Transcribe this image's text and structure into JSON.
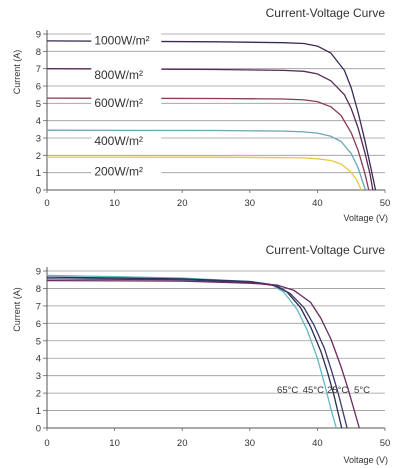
{
  "chart_data": [
    {
      "type": "line",
      "title": "Current-Voltage Curve",
      "xlabel": "Voltage (V)",
      "ylabel": "Current (A)",
      "xlim": [
        0,
        50
      ],
      "ylim": [
        0,
        9
      ],
      "xticks": [
        "0",
        "10",
        "20",
        "30",
        "40",
        "50"
      ],
      "yticks": [
        "0",
        "1",
        "2",
        "3",
        "4",
        "5",
        "6",
        "7",
        "8",
        "9"
      ],
      "grid": "horizontal",
      "series": [
        {
          "name": "1000W/m²",
          "color": "#3a2a55",
          "label_at": [
            7,
            8.4
          ],
          "x": [
            0,
            25,
            35,
            38,
            40,
            42,
            44,
            45,
            46,
            47,
            48,
            48.6
          ],
          "y": [
            8.6,
            8.55,
            8.5,
            8.45,
            8.3,
            7.9,
            6.9,
            5.9,
            4.5,
            2.9,
            1.1,
            0
          ]
        },
        {
          "name": "800W/m²",
          "color": "#5a2a55",
          "label_at": [
            7,
            6.4
          ],
          "x": [
            0,
            25,
            35,
            38,
            40,
            42,
            44,
            45,
            46,
            47,
            47.8,
            48.2
          ],
          "y": [
            7.0,
            6.95,
            6.9,
            6.85,
            6.7,
            6.3,
            5.5,
            4.7,
            3.6,
            2.2,
            0.9,
            0
          ]
        },
        {
          "name": "600W/m²",
          "color": "#8a3a5a",
          "label_at": [
            7,
            4.8
          ],
          "x": [
            0,
            25,
            35,
            38,
            40,
            42,
            43.5,
            45,
            46,
            47,
            47.6
          ],
          "y": [
            5.3,
            5.28,
            5.25,
            5.2,
            5.1,
            4.8,
            4.3,
            3.3,
            2.3,
            1.0,
            0
          ]
        },
        {
          "name": "400W/m²",
          "color": "#6aa6b8",
          "label_at": [
            7,
            2.6
          ],
          "x": [
            0,
            25,
            35,
            38,
            40,
            42,
            43.5,
            45,
            46,
            47.1
          ],
          "y": [
            3.45,
            3.43,
            3.4,
            3.35,
            3.28,
            3.1,
            2.8,
            2.1,
            1.3,
            0
          ]
        },
        {
          "name": "200W/m²",
          "color": "#e8c840",
          "label_at": [
            7,
            0.85
          ],
          "x": [
            0,
            25,
            35,
            38,
            40,
            42,
            43.5,
            44.8,
            45.8,
            46.5
          ],
          "y": [
            1.9,
            1.89,
            1.87,
            1.85,
            1.8,
            1.7,
            1.5,
            1.1,
            0.6,
            0
          ]
        }
      ]
    },
    {
      "type": "line",
      "title": "Current-Voltage Curve",
      "xlabel": "Voltage (V)",
      "ylabel": "Current (A)",
      "xlim": [
        0,
        50
      ],
      "ylim": [
        0,
        9
      ],
      "xticks": [
        "0",
        "10",
        "20",
        "30",
        "40",
        "50"
      ],
      "yticks": [
        "0",
        "1",
        "2",
        "3",
        "4",
        "5",
        "6",
        "7",
        "8",
        "9"
      ],
      "grid": "horizontal",
      "series": [
        {
          "name": "65°C",
          "color": "#5fb8c0",
          "label_at": [
            35.6,
            2.0
          ],
          "x": [
            0,
            20,
            30,
            33,
            35,
            37,
            38.5,
            40,
            41,
            42,
            42.8
          ],
          "y": [
            8.75,
            8.6,
            8.4,
            8.25,
            7.8,
            6.8,
            5.6,
            4.0,
            2.6,
            1.1,
            0
          ]
        },
        {
          "name": "45°C",
          "color": "#2a2a50",
          "label_at": [
            39.4,
            2.0
          ],
          "x": [
            0,
            20,
            30,
            33.5,
            35.5,
            37.5,
            39,
            40.5,
            41.5,
            42.5,
            43.6
          ],
          "y": [
            8.65,
            8.55,
            8.4,
            8.2,
            7.8,
            6.9,
            5.8,
            4.4,
            3.2,
            1.8,
            0
          ]
        },
        {
          "name": "25°C",
          "color": "#3a3a6a",
          "label_at": [
            43.0,
            2.0
          ],
          "x": [
            0,
            20,
            30,
            34,
            36,
            38,
            39.5,
            41,
            42,
            43,
            44.4
          ],
          "y": [
            8.55,
            8.5,
            8.35,
            8.15,
            7.7,
            6.9,
            5.9,
            4.6,
            3.4,
            2.1,
            0
          ]
        },
        {
          "name": "5°C",
          "color": "#6a2a5e",
          "label_at": [
            46.6,
            2.0
          ],
          "x": [
            0,
            20,
            30,
            34,
            36.5,
            39,
            40.5,
            42,
            43.5,
            44.5,
            46.2
          ],
          "y": [
            8.45,
            8.42,
            8.3,
            8.2,
            7.9,
            7.2,
            6.3,
            5.1,
            3.5,
            2.3,
            0
          ]
        }
      ]
    }
  ]
}
